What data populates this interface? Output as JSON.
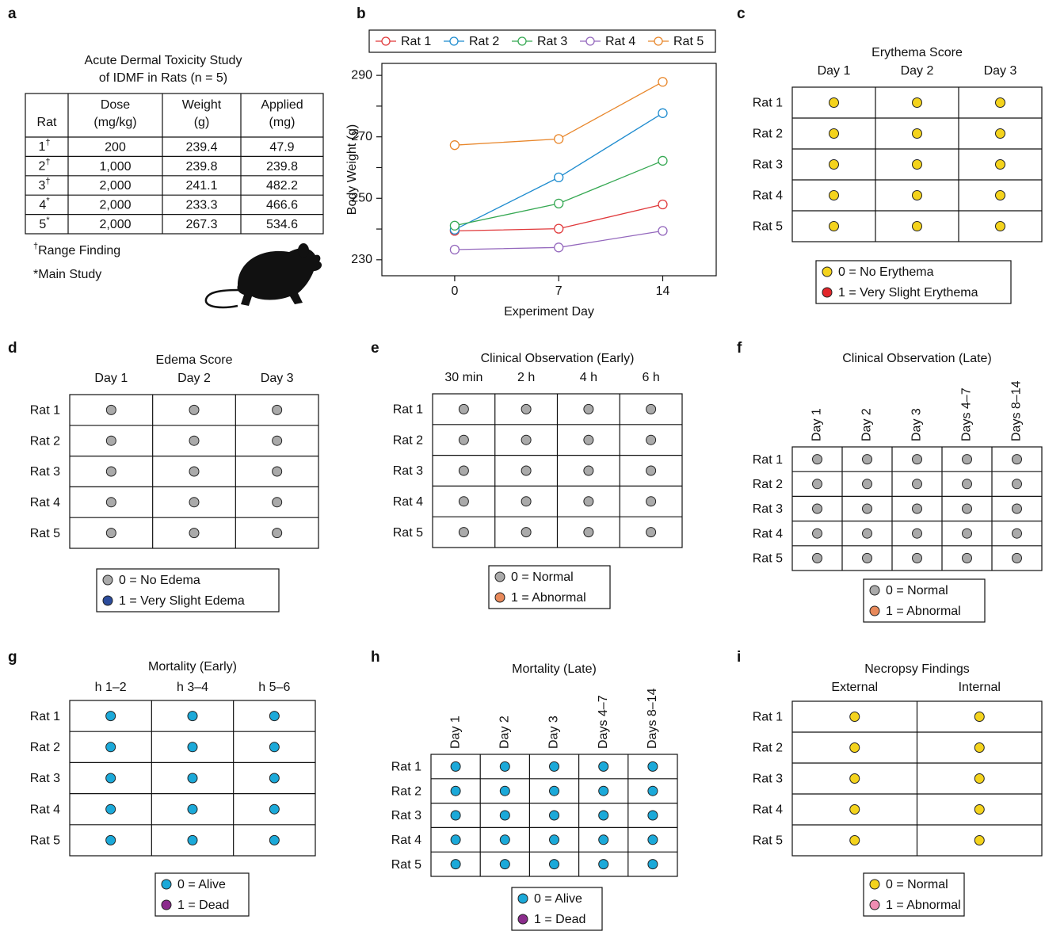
{
  "table_a": {
    "panel": "a",
    "title_lines": [
      "Acute Dermal Toxicity Study",
      "of IDMF in Rats (n = 5)"
    ],
    "header": [
      [
        "Rat"
      ],
      [
        "Dose",
        "(mg/kg)"
      ],
      [
        "Weight",
        "(g)"
      ],
      [
        "Applied",
        "(mg)"
      ]
    ],
    "rows": [
      {
        "rat": "1",
        "mark": "†",
        "dose": "200",
        "weight": "239.4",
        "applied": "47.9"
      },
      {
        "rat": "2",
        "mark": "†",
        "dose": "1,000",
        "weight": "239.8",
        "applied": "239.8"
      },
      {
        "rat": "3",
        "mark": "†",
        "dose": "2,000",
        "weight": "241.1",
        "applied": "482.2"
      },
      {
        "rat": "4",
        "mark": "*",
        "dose": "2,000",
        "weight": "233.3",
        "applied": "466.6"
      },
      {
        "rat": "5",
        "mark": "*",
        "dose": "2,000",
        "weight": "267.3",
        "applied": "534.6"
      }
    ],
    "notes": [
      {
        "mark": "†",
        "text": "Range Finding"
      },
      {
        "mark": "*",
        "text": "Main Study"
      }
    ]
  },
  "chart_data": {
    "type": "line",
    "panel": "b",
    "x_label": "Experiment Day",
    "y_label": "Body Weight (g)",
    "x": [
      0,
      7,
      14
    ],
    "xlim": [
      -4.9,
      17.6
    ],
    "xticks": [
      0,
      7,
      14
    ],
    "ylim": [
      224.8,
      293.9
    ],
    "yticks": [
      230,
      250,
      270,
      290
    ],
    "yminorticks": [
      240,
      260,
      280
    ],
    "legend": "top",
    "series": [
      {
        "name": "Rat 1",
        "color": "#e0393b",
        "values": [
          239.4,
          240.1,
          248.0
        ]
      },
      {
        "name": "Rat 2",
        "color": "#1f8ccf",
        "values": [
          239.8,
          256.8,
          277.7
        ]
      },
      {
        "name": "Rat 3",
        "color": "#35a852",
        "values": [
          241.1,
          248.3,
          262.2
        ]
      },
      {
        "name": "Rat 4",
        "color": "#9468bd",
        "values": [
          233.3,
          234.0,
          239.4
        ]
      },
      {
        "name": "Rat 5",
        "color": "#e8862a",
        "values": [
          267.3,
          269.3,
          287.9
        ]
      }
    ]
  },
  "grids": [
    {
      "panel": "c",
      "title": "Erythema Score",
      "columns": [
        "Day 1",
        "Day 2",
        "Day 3"
      ],
      "rotate_columns": false,
      "rows": [
        "Rat 1",
        "Rat 2",
        "Rat 3",
        "Rat 4",
        "Rat 5"
      ],
      "values": [
        [
          0,
          0,
          0
        ],
        [
          0,
          0,
          0
        ],
        [
          0,
          0,
          0
        ],
        [
          0,
          0,
          0
        ],
        [
          0,
          0,
          0
        ]
      ],
      "legend": [
        {
          "label": "0 = No Erythema",
          "color": "#f4d31c"
        },
        {
          "label": "1 = Very Slight Erythema",
          "color": "#e2262b"
        }
      ]
    },
    {
      "panel": "d",
      "title": "Edema Score",
      "columns": [
        "Day 1",
        "Day 2",
        "Day 3"
      ],
      "rotate_columns": false,
      "rows": [
        "Rat 1",
        "Rat 2",
        "Rat 3",
        "Rat 4",
        "Rat 5"
      ],
      "values": [
        [
          0,
          0,
          0
        ],
        [
          0,
          0,
          0
        ],
        [
          0,
          0,
          0
        ],
        [
          0,
          0,
          0
        ],
        [
          0,
          0,
          0
        ]
      ],
      "legend": [
        {
          "label": "0 = No Edema",
          "color": "#aaaaaa"
        },
        {
          "label": "1 = Very Slight Edema",
          "color": "#2c4c9c"
        }
      ]
    },
    {
      "panel": "e",
      "title": "Clinical Observation (Early)",
      "columns": [
        "30 min",
        "2 h",
        "4 h",
        "6 h"
      ],
      "rotate_columns": false,
      "rows": [
        "Rat 1",
        "Rat 2",
        "Rat 3",
        "Rat 4",
        "Rat 5"
      ],
      "values": [
        [
          0,
          0,
          0,
          0
        ],
        [
          0,
          0,
          0,
          0
        ],
        [
          0,
          0,
          0,
          0
        ],
        [
          0,
          0,
          0,
          0
        ],
        [
          0,
          0,
          0,
          0
        ]
      ],
      "legend": [
        {
          "label": "0 = Normal",
          "color": "#aaaaaa"
        },
        {
          "label": "1 = Abnormal",
          "color": "#e8895a"
        }
      ]
    },
    {
      "panel": "f",
      "title": "Clinical Observation (Late)",
      "columns": [
        "Day 1",
        "Day 2",
        "Day 3",
        "Days 4–7",
        "Days 8–14"
      ],
      "rotate_columns": true,
      "rows": [
        "Rat 1",
        "Rat 2",
        "Rat 3",
        "Rat 4",
        "Rat 5"
      ],
      "values": [
        [
          0,
          0,
          0,
          0,
          0
        ],
        [
          0,
          0,
          0,
          0,
          0
        ],
        [
          0,
          0,
          0,
          0,
          0
        ],
        [
          0,
          0,
          0,
          0,
          0
        ],
        [
          0,
          0,
          0,
          0,
          0
        ]
      ],
      "legend": [
        {
          "label": "0 = Normal",
          "color": "#aaaaaa"
        },
        {
          "label": "1 = Abnormal",
          "color": "#e8895a"
        }
      ]
    },
    {
      "panel": "g",
      "title": "Mortality (Early)",
      "columns": [
        "h 1–2",
        "h 3–4",
        "h 5–6"
      ],
      "rotate_columns": false,
      "rows": [
        "Rat 1",
        "Rat 2",
        "Rat 3",
        "Rat 4",
        "Rat 5"
      ],
      "values": [
        [
          0,
          0,
          0
        ],
        [
          0,
          0,
          0
        ],
        [
          0,
          0,
          0
        ],
        [
          0,
          0,
          0
        ],
        [
          0,
          0,
          0
        ]
      ],
      "legend": [
        {
          "label": "0 = Alive",
          "color": "#1ba9d9"
        },
        {
          "label": "1 = Dead",
          "color": "#8b2c8c"
        }
      ]
    },
    {
      "panel": "h",
      "title": "Mortality (Late)",
      "columns": [
        "Day 1",
        "Day 2",
        "Day 3",
        "Days 4–7",
        "Days 8–14"
      ],
      "rotate_columns": true,
      "rows": [
        "Rat 1",
        "Rat 2",
        "Rat 3",
        "Rat 4",
        "Rat 5"
      ],
      "values": [
        [
          0,
          0,
          0,
          0,
          0
        ],
        [
          0,
          0,
          0,
          0,
          0
        ],
        [
          0,
          0,
          0,
          0,
          0
        ],
        [
          0,
          0,
          0,
          0,
          0
        ],
        [
          0,
          0,
          0,
          0,
          0
        ]
      ],
      "legend": [
        {
          "label": "0 = Alive",
          "color": "#1ba9d9"
        },
        {
          "label": "1 = Dead",
          "color": "#8b2c8c"
        }
      ]
    },
    {
      "panel": "i",
      "title": "Necropsy Findings",
      "columns": [
        "External",
        "Internal"
      ],
      "rotate_columns": false,
      "rows": [
        "Rat 1",
        "Rat 2",
        "Rat 3",
        "Rat 4",
        "Rat 5"
      ],
      "values": [
        [
          0,
          0
        ],
        [
          0,
          0
        ],
        [
          0,
          0
        ],
        [
          0,
          0
        ],
        [
          0,
          0
        ]
      ],
      "legend": [
        {
          "label": "0 = Normal",
          "color": "#f4d31c"
        },
        {
          "label": "1 = Abnormal",
          "color": "#f08db2"
        }
      ]
    }
  ]
}
